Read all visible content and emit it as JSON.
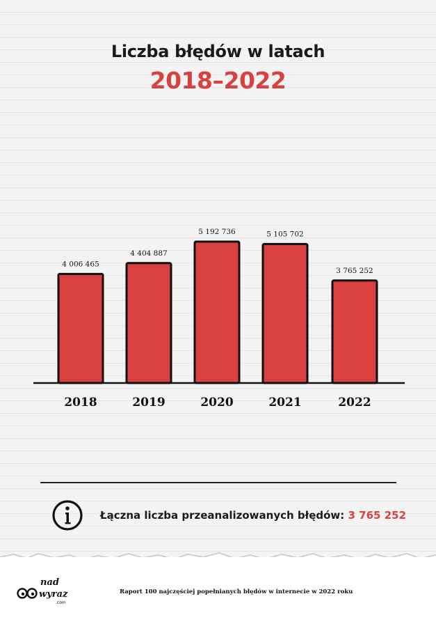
{
  "chart_data": {
    "type": "bar",
    "title": "Liczba błędów w latach",
    "subtitle": "2018–2022",
    "categories": [
      "2018",
      "2019",
      "2020",
      "2021",
      "2022"
    ],
    "values": [
      4006465,
      4404887,
      5192736,
      5105702,
      3765252
    ],
    "value_labels": [
      "4 006 465",
      "4 404 887",
      "5 192 736",
      "5 105 702",
      "3 765 252"
    ],
    "ylim": [
      0,
      5192736
    ],
    "grid": false,
    "colors": {
      "bar": "#d94141",
      "outline": "#111111",
      "accent": "#d94141"
    }
  },
  "info": {
    "label": "Łączna liczba przeanalizowanych błędów:",
    "value": "3 765 252",
    "icon": "info-icon"
  },
  "footer": {
    "logo_text_top": "nad",
    "logo_text_bottom": "wyraz",
    "logo_text_small": ".com",
    "report": "Raport 100 najczęściej popełnianych błędów w internecie w 2022 roku"
  }
}
